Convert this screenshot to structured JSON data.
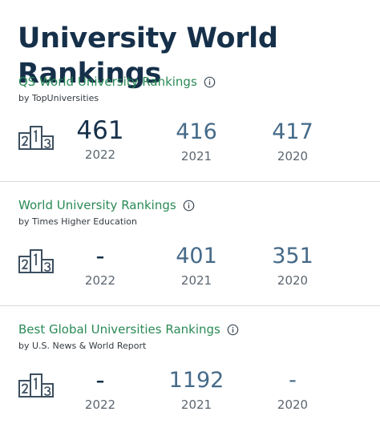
{
  "page_title": "University World Rankings",
  "rankings": [
    {
      "title": "QS World University Rankings",
      "source": "by TopUniversities",
      "columns": [
        {
          "value": "461",
          "year": "2022"
        },
        {
          "value": "416",
          "year": "2021"
        },
        {
          "value": "417",
          "year": "2020"
        }
      ]
    },
    {
      "title": "World University Rankings",
      "source": "by Times Higher Education",
      "columns": [
        {
          "value": "-",
          "year": "2022"
        },
        {
          "value": "401",
          "year": "2021"
        },
        {
          "value": "351",
          "year": "2020"
        }
      ]
    },
    {
      "title": "Best Global Universities Rankings",
      "source": "by U.S. News & World Report",
      "columns": [
        {
          "value": "-",
          "year": "2022"
        },
        {
          "value": "1192",
          "year": "2021"
        },
        {
          "value": "-",
          "year": "2020"
        }
      ]
    }
  ],
  "icons": {
    "info": "info-icon",
    "podium": "podium-icon"
  },
  "colors": {
    "title": "#16304a",
    "section_title": "#2a8a56",
    "rank_value": "#456a89",
    "year": "#5c6670",
    "divider": "#d6d9dc"
  }
}
